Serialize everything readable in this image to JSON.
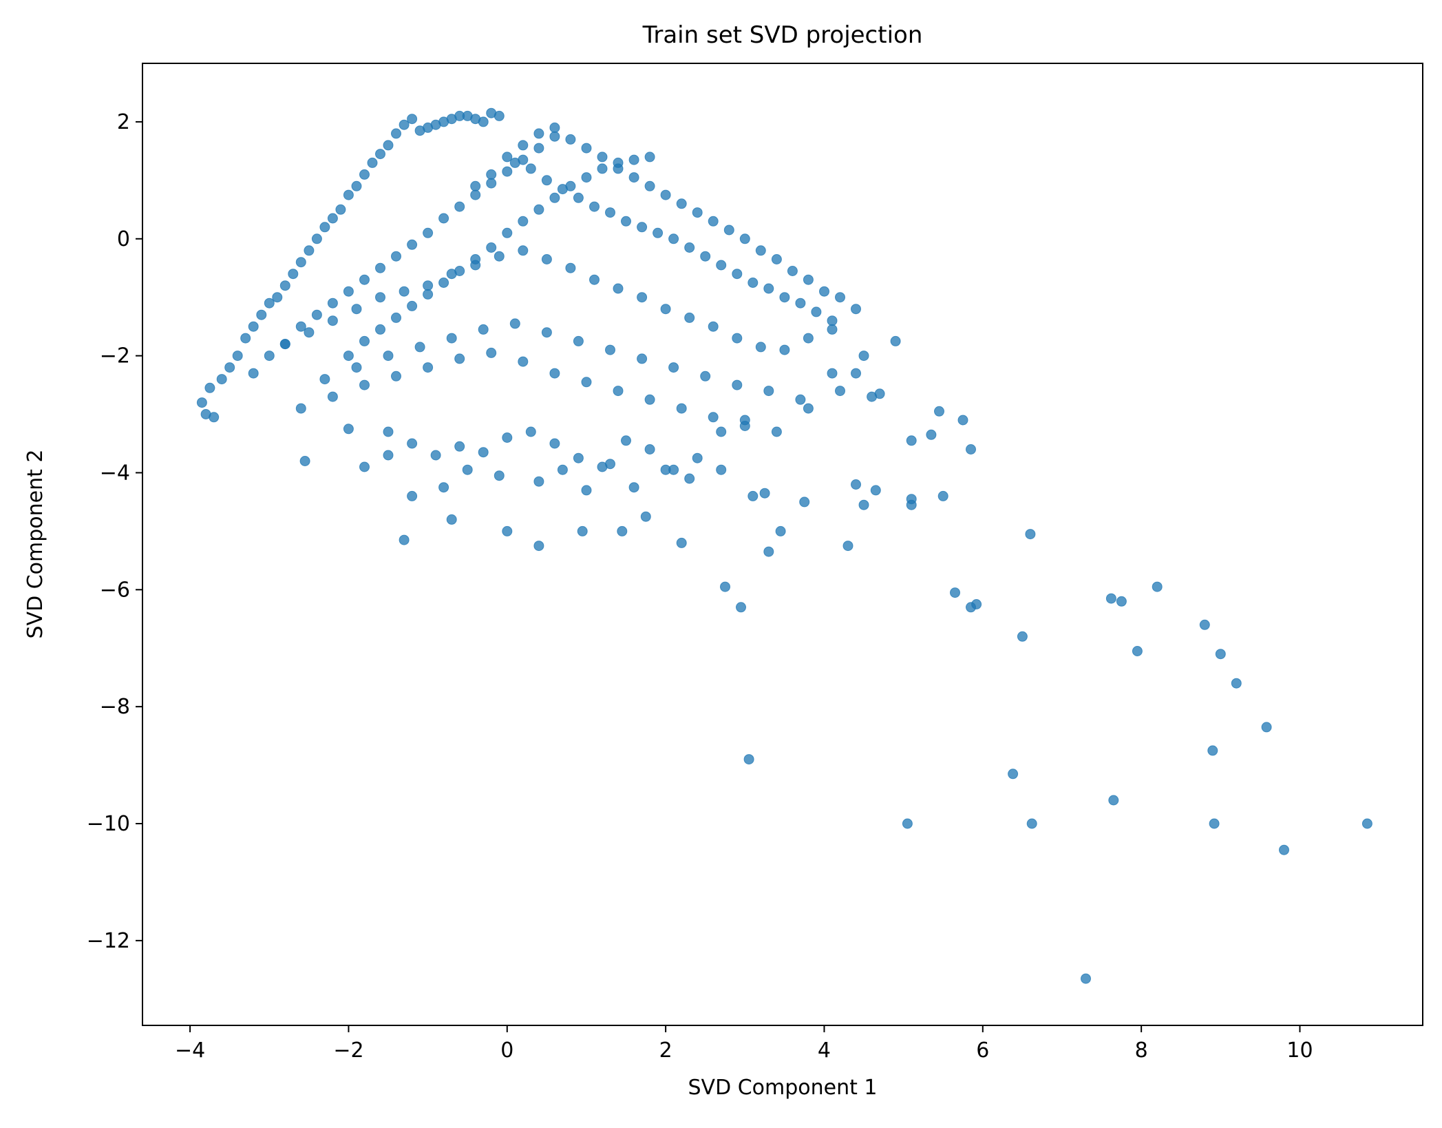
{
  "chart_data": {
    "type": "scatter",
    "title": "Train set SVD projection",
    "xlabel": "SVD Component 1",
    "ylabel": "SVD Component 2",
    "xlim": [
      -4.6,
      11.55
    ],
    "ylim": [
      -13.45,
      3.0
    ],
    "xticks": [
      -4,
      -2,
      0,
      2,
      4,
      6,
      8,
      10
    ],
    "xtick_labels": [
      "−4",
      "−2",
      "0",
      "2",
      "4",
      "6",
      "8",
      "10"
    ],
    "yticks": [
      2,
      0,
      -2,
      -4,
      -6,
      -8,
      -10,
      -12
    ],
    "ytick_labels": [
      "2",
      "0",
      "−2",
      "−4",
      "−6",
      "−8",
      "−10",
      "−12"
    ],
    "grid": false,
    "legend": false,
    "color": "#1f77b4",
    "alpha": 0.75,
    "x": [
      -3.85,
      -3.8,
      -3.75,
      -3.7,
      -3.6,
      -3.5,
      -3.4,
      -3.3,
      -3.2,
      -3.1,
      -3.0,
      -2.9,
      -2.8,
      -2.7,
      -2.6,
      -2.5,
      -2.4,
      -2.3,
      -2.2,
      -2.1,
      -2.0,
      -1.9,
      -1.8,
      -1.7,
      -1.6,
      -1.5,
      -1.4,
      -1.3,
      -1.2,
      -1.1,
      -1.0,
      -0.9,
      -0.8,
      -0.7,
      -0.6,
      -0.5,
      -0.4,
      -0.3,
      -0.2,
      -0.1,
      -3.2,
      -3.0,
      -2.8,
      -2.6,
      -2.4,
      -2.2,
      -2.0,
      -1.8,
      -1.6,
      -1.4,
      -1.2,
      -1.0,
      -0.8,
      -0.6,
      -0.4,
      -0.2,
      0.0,
      0.2,
      0.4,
      0.6,
      -2.0,
      -1.8,
      -1.6,
      -1.4,
      -1.2,
      -1.0,
      -0.8,
      -0.6,
      -0.4,
      -0.2,
      0.0,
      0.2,
      0.4,
      0.6,
      0.8,
      1.0,
      1.2,
      1.4,
      1.6,
      1.8,
      0.0,
      0.2,
      0.4,
      0.6,
      0.8,
      1.0,
      1.2,
      1.4,
      1.6,
      1.8,
      2.0,
      2.2,
      2.4,
      2.6,
      2.8,
      3.0,
      3.2,
      3.4,
      3.6,
      3.8,
      4.0,
      4.2,
      4.4,
      -0.4,
      -0.2,
      0.1,
      0.3,
      0.5,
      0.7,
      0.9,
      1.1,
      1.3,
      1.5,
      1.7,
      1.9,
      2.1,
      2.3,
      2.5,
      2.7,
      2.9,
      3.1,
      3.3,
      3.5,
      3.7,
      3.9,
      4.1,
      -2.8,
      -2.5,
      -2.2,
      -1.9,
      -1.6,
      -1.3,
      -1.0,
      -0.7,
      -0.4,
      -0.1,
      0.2,
      0.5,
      0.8,
      1.1,
      1.4,
      1.7,
      2.0,
      2.3,
      2.6,
      2.9,
      3.2,
      3.5,
      3.8,
      4.1,
      4.4,
      4.7,
      -2.3,
      -1.9,
      -1.5,
      -1.1,
      -0.7,
      -0.3,
      0.1,
      0.5,
      0.9,
      1.3,
      1.7,
      2.1,
      2.5,
      2.9,
      3.3,
      3.7,
      4.1,
      4.5,
      4.9,
      -2.6,
      -2.2,
      -1.8,
      -1.4,
      -1.0,
      -0.6,
      -0.2,
      0.2,
      0.6,
      1.0,
      1.4,
      1.8,
      2.2,
      2.6,
      3.0,
      3.4,
      3.8,
      4.2,
      4.6,
      -2.55,
      -2.0,
      -1.8,
      -1.5,
      -1.2,
      -0.9,
      -0.6,
      -0.3,
      0.0,
      0.3,
      0.6,
      0.9,
      1.2,
      1.5,
      1.8,
      2.1,
      2.4,
      2.7,
      3.0,
      -1.5,
      -1.2,
      -0.8,
      -0.5,
      -0.1,
      0.4,
      0.7,
      1.0,
      1.3,
      1.6,
      2.0,
      2.3,
      2.7,
      3.1,
      -1.3,
      -0.7,
      0.0,
      0.4,
      0.95,
      1.45,
      1.75,
      2.2,
      2.75,
      3.25,
      3.45,
      3.75,
      3.3,
      5.5,
      5.75,
      5.85,
      5.1,
      5.35,
      5.45,
      4.3,
      4.5,
      4.65,
      5.1,
      5.1,
      4.4,
      2.95,
      3.05,
      5.05,
      5.65,
      5.85,
      5.92,
      6.5,
      6.38,
      6.6,
      6.62,
      7.3,
      7.62,
      7.65,
      7.75,
      7.95,
      8.2,
      8.8,
      9.0,
      9.2,
      9.58,
      8.9,
      8.92,
      9.8,
      10.85
    ],
    "y": [
      -2.8,
      -3.0,
      -2.55,
      -3.05,
      -2.4,
      -2.2,
      -2.0,
      -1.7,
      -1.5,
      -1.3,
      -1.1,
      -1.0,
      -0.8,
      -0.6,
      -0.4,
      -0.2,
      0.0,
      0.2,
      0.35,
      0.5,
      0.75,
      0.9,
      1.1,
      1.3,
      1.45,
      1.6,
      1.8,
      1.95,
      2.05,
      1.85,
      1.9,
      1.95,
      2.0,
      2.05,
      2.1,
      2.1,
      2.05,
      2.0,
      2.15,
      2.1,
      -2.3,
      -2.0,
      -1.8,
      -1.5,
      -1.3,
      -1.1,
      -0.9,
      -0.7,
      -0.5,
      -0.3,
      -0.1,
      0.1,
      0.35,
      0.55,
      0.75,
      0.95,
      1.15,
      1.35,
      1.55,
      1.75,
      -2.0,
      -1.75,
      -1.55,
      -1.35,
      -1.15,
      -0.95,
      -0.75,
      -0.55,
      -0.35,
      -0.15,
      0.1,
      0.3,
      0.5,
      0.7,
      0.9,
      1.05,
      1.2,
      1.3,
      1.35,
      1.4,
      1.4,
      1.6,
      1.8,
      1.9,
      1.7,
      1.55,
      1.4,
      1.2,
      1.05,
      0.9,
      0.75,
      0.6,
      0.45,
      0.3,
      0.15,
      0.0,
      -0.2,
      -0.35,
      -0.55,
      -0.7,
      -0.9,
      -1.0,
      -1.2,
      0.9,
      1.1,
      1.3,
      1.2,
      1.0,
      0.85,
      0.7,
      0.55,
      0.45,
      0.3,
      0.2,
      0.1,
      0.0,
      -0.15,
      -0.3,
      -0.45,
      -0.6,
      -0.75,
      -0.85,
      -1.0,
      -1.1,
      -1.25,
      -1.4,
      -1.8,
      -1.6,
      -1.4,
      -1.2,
      -1.0,
      -0.9,
      -0.8,
      -0.6,
      -0.45,
      -0.3,
      -0.2,
      -0.35,
      -0.5,
      -0.7,
      -0.85,
      -1.0,
      -1.2,
      -1.35,
      -1.5,
      -1.7,
      -1.85,
      -1.9,
      -1.7,
      -1.55,
      -2.3,
      -2.65,
      -2.4,
      -2.2,
      -2.0,
      -1.85,
      -1.7,
      -1.55,
      -1.45,
      -1.6,
      -1.75,
      -1.9,
      -2.05,
      -2.2,
      -2.35,
      -2.5,
      -2.6,
      -2.75,
      -2.3,
      -2.0,
      -1.75,
      -2.9,
      -2.7,
      -2.5,
      -2.35,
      -2.2,
      -2.05,
      -1.95,
      -2.1,
      -2.3,
      -2.45,
      -2.6,
      -2.75,
      -2.9,
      -3.05,
      -3.2,
      -3.3,
      -2.9,
      -2.6,
      -2.7,
      -3.8,
      -3.25,
      -3.9,
      -3.3,
      -3.5,
      -3.7,
      -3.55,
      -3.65,
      -3.4,
      -3.3,
      -3.5,
      -3.75,
      -3.9,
      -3.45,
      -3.6,
      -3.95,
      -3.75,
      -3.3,
      -3.1,
      -3.7,
      -4.4,
      -4.25,
      -3.95,
      -4.05,
      -4.15,
      -3.95,
      -4.3,
      -3.85,
      -4.25,
      -3.95,
      -4.1,
      -3.95,
      -4.4,
      -5.15,
      -4.8,
      -5.0,
      -5.25,
      -5.0,
      -5.0,
      -4.75,
      -5.2,
      -5.95,
      -4.35,
      -5.0,
      -4.5,
      -5.35,
      -4.4,
      -3.1,
      -3.6,
      -3.45,
      -3.35,
      -2.95,
      -5.25,
      -4.55,
      -4.3,
      -4.45,
      -4.55,
      -4.2,
      -6.3,
      -8.9,
      -10.0,
      -6.05,
      -6.3,
      -6.25,
      -6.8,
      -9.15,
      -5.05,
      -10.0,
      -12.65,
      -6.15,
      -9.6,
      -6.2,
      -7.05,
      -5.95,
      -6.6,
      -7.1,
      -7.6,
      -8.35,
      -8.75,
      -10.0,
      -10.45,
      -10.0
    ]
  }
}
